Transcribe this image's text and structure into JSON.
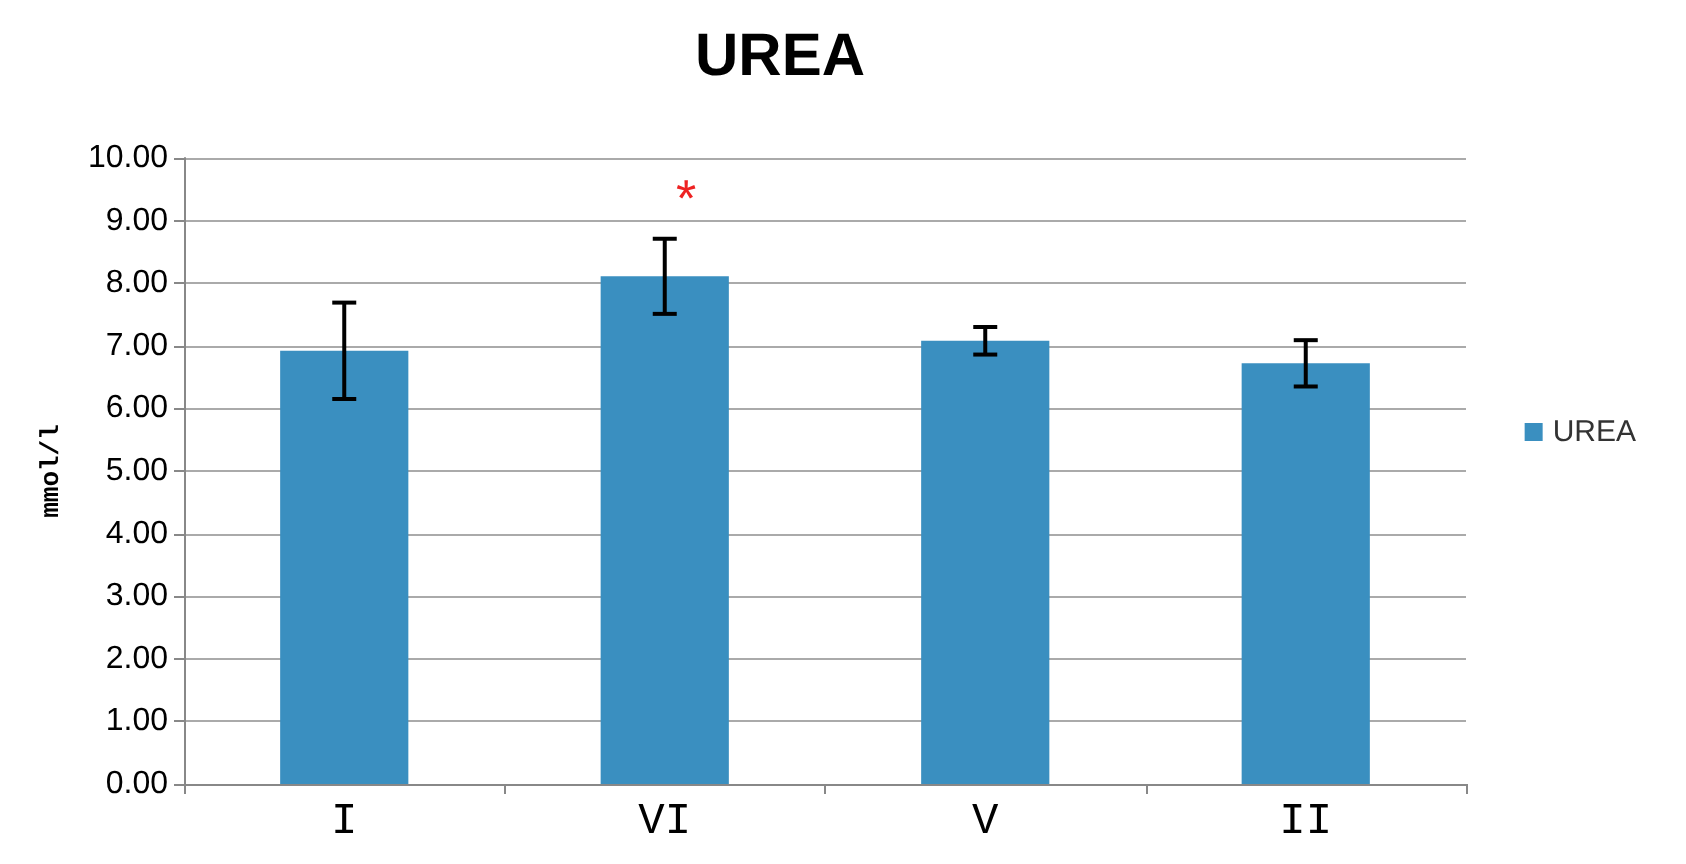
{
  "chart_data": {
    "type": "bar",
    "title": "UREA",
    "ylabel": "mmol/l",
    "categories": [
      "I",
      "VI",
      "V",
      "II"
    ],
    "series": [
      {
        "name": "UREA",
        "color": "#3a8fc0",
        "values": [
          6.92,
          8.11,
          7.08,
          6.72
        ],
        "errors": [
          0.77,
          0.6,
          0.22,
          0.37
        ]
      }
    ],
    "ylim": [
      0,
      10
    ],
    "yticks": [
      {
        "value": 0,
        "label": "0.00"
      },
      {
        "value": 1,
        "label": "1.00"
      },
      {
        "value": 2,
        "label": "2.00"
      },
      {
        "value": 3,
        "label": "3.00"
      },
      {
        "value": 4,
        "label": "4.00"
      },
      {
        "value": 5,
        "label": "5.00"
      },
      {
        "value": 6,
        "label": "6.00"
      },
      {
        "value": 7,
        "label": "7.00"
      },
      {
        "value": 8,
        "label": "8.00"
      },
      {
        "value": 9,
        "label": "9.00"
      },
      {
        "value": 10,
        "label": "10.00"
      }
    ],
    "annotations": [
      "*"
    ],
    "grid": "y",
    "legend": "right"
  }
}
